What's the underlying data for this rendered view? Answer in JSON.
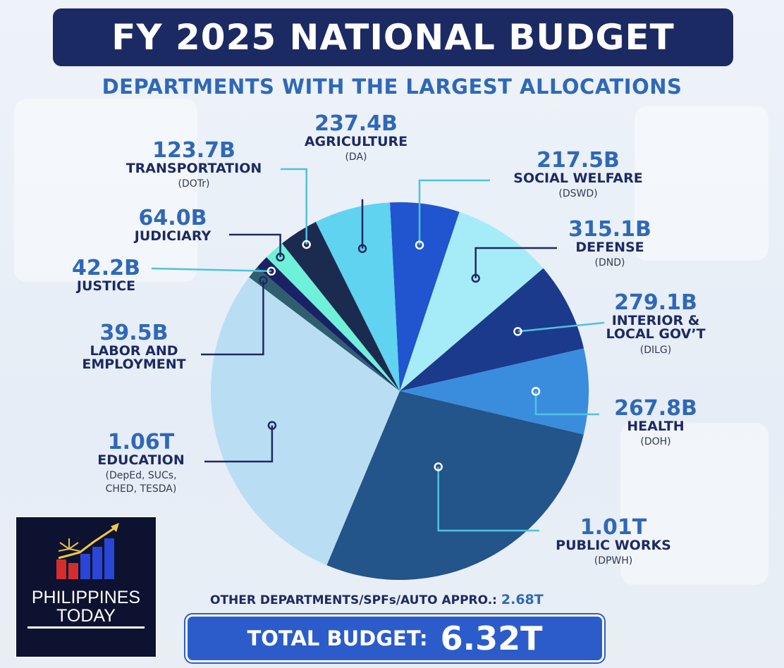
{
  "header": {
    "title": "FY 2025 NATIONAL BUDGET",
    "subtitle": "DEPARTMENTS WITH THE LARGEST ALLOCATIONS"
  },
  "labels": {
    "agriculture": {
      "value": "237.4B",
      "name": "AGRICULTURE",
      "abbr": "(DA)"
    },
    "transportation": {
      "value": "123.7B",
      "name": "TRANSPORTATION",
      "abbr": "(DOTr)"
    },
    "social_welfare": {
      "value": "217.5B",
      "name": "SOCIAL WELFARE",
      "abbr": "(DSWD)"
    },
    "judiciary": {
      "value": "64.0B",
      "name": "JUDICIARY"
    },
    "defense": {
      "value": "315.1B",
      "name": "DEFENSE",
      "abbr": "(DND)"
    },
    "justice": {
      "value": "42.2B",
      "name": "JUSTICE"
    },
    "interior": {
      "value": "279.1B",
      "name1": "INTERIOR &",
      "name2": "LOCAL GOV’T",
      "abbr": "(DILG)"
    },
    "labor": {
      "value": "39.5B",
      "name1": "LABOR AND",
      "name2": "EMPLOYMENT"
    },
    "health": {
      "value": "267.8B",
      "name": "HEALTH",
      "abbr": "(DOH)"
    },
    "education": {
      "value": "1.06T",
      "name": "EDUCATION",
      "abbr1": "(DepEd, SUCs,",
      "abbr2": "CHED, TESDA)"
    },
    "public_works": {
      "value": "1.01T",
      "name": "PUBLIC WORKS",
      "abbr": "(DPWH)"
    }
  },
  "footer": {
    "other_label": "OTHER DEPARTMENTS/SPFs/AUTO APPRO.:",
    "other_value": "2.68T",
    "total_label": "TOTAL BUDGET:",
    "total_value": "6.32T"
  },
  "logo": {
    "line1": "PHILIPPINES",
    "line2": "TODAY"
  },
  "colors": {
    "navy": "#1c2a63",
    "accent_blue": "#2f68b8",
    "total_bg": "#2c5cc9"
  },
  "chart_data": {
    "type": "pie",
    "title": "FY 2025 NATIONAL BUDGET",
    "subtitle": "DEPARTMENTS WITH THE LARGEST ALLOCATIONS",
    "unit": "PHP billions",
    "start_angle_deg": -93,
    "slices": [
      {
        "key": "social_welfare",
        "label": "SOCIAL WELFARE",
        "value": 217.5,
        "color": "#2154cf"
      },
      {
        "key": "defense",
        "label": "DEFENSE",
        "value": 315.1,
        "color": "#a6ecf8"
      },
      {
        "key": "interior",
        "label": "INTERIOR & LOCAL GOV’T",
        "value": 279.1,
        "color": "#1b3a8c"
      },
      {
        "key": "health",
        "label": "HEALTH",
        "value": 267.8,
        "color": "#3a8ddc"
      },
      {
        "key": "public_works",
        "label": "PUBLIC WORKS",
        "value": 1010,
        "color": "#23548a"
      },
      {
        "key": "education",
        "label": "EDUCATION",
        "value": 1060,
        "color": "#b9def4"
      },
      {
        "key": "labor",
        "label": "LABOR AND EMPLOYMENT",
        "value": 39.5,
        "color": "#2f5f6e"
      },
      {
        "key": "justice",
        "label": "JUSTICE",
        "value": 42.2,
        "color": "#1a2266"
      },
      {
        "key": "judiciary",
        "label": "JUDICIARY",
        "value": 64.0,
        "color": "#6ff0d8"
      },
      {
        "key": "transportation",
        "label": "TRANSPORTATION",
        "value": 123.7,
        "color": "#1b2b4f"
      },
      {
        "key": "agriculture",
        "label": "AGRICULTURE",
        "value": 237.4,
        "color": "#5fd3f0"
      }
    ],
    "other_departments": 2680,
    "total": 6320
  }
}
